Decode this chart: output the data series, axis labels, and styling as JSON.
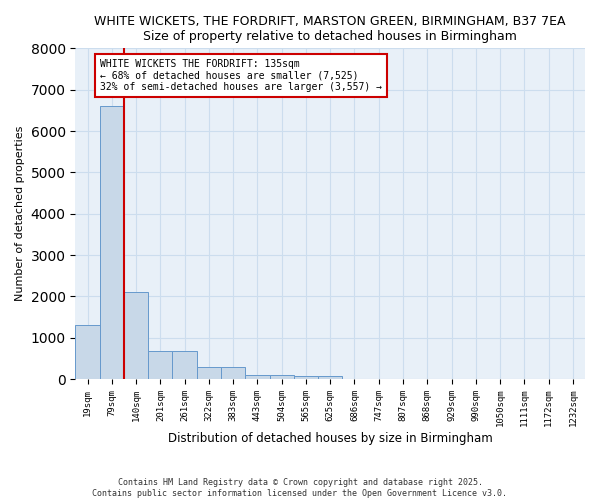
{
  "title1": "WHITE WICKETS, THE FORDRIFT, MARSTON GREEN, BIRMINGHAM, B37 7EA",
  "title2": "Size of property relative to detached houses in Birmingham",
  "xlabel": "Distribution of detached houses by size in Birmingham",
  "ylabel": "Number of detached properties",
  "bin_labels": [
    "19sqm",
    "79sqm",
    "140sqm",
    "201sqm",
    "261sqm",
    "322sqm",
    "383sqm",
    "443sqm",
    "504sqm",
    "565sqm",
    "625sqm",
    "686sqm",
    "747sqm",
    "807sqm",
    "868sqm",
    "929sqm",
    "990sqm",
    "1050sqm",
    "1111sqm",
    "1172sqm",
    "1232sqm"
  ],
  "bar_heights": [
    1320,
    6600,
    2100,
    680,
    680,
    300,
    290,
    110,
    110,
    80,
    80,
    0,
    0,
    0,
    0,
    0,
    0,
    0,
    0,
    0,
    0
  ],
  "bar_color": "#c8d8e8",
  "bar_edge_color": "#6699cc",
  "vline_x_idx": 1.5,
  "vline_color": "#cc0000",
  "annotation_text": "WHITE WICKETS THE FORDRIFT: 135sqm\n← 68% of detached houses are smaller (7,525)\n32% of semi-detached houses are larger (3,557) →",
  "annotation_box_color": "#ffffff",
  "annotation_box_edge": "#cc0000",
  "ylim": [
    0,
    8000
  ],
  "yticks": [
    0,
    1000,
    2000,
    3000,
    4000,
    5000,
    6000,
    7000,
    8000
  ],
  "grid_color": "#ccddee",
  "background_color": "#e8f0f8",
  "footer1": "Contains HM Land Registry data © Crown copyright and database right 2025.",
  "footer2": "Contains public sector information licensed under the Open Government Licence v3.0."
}
